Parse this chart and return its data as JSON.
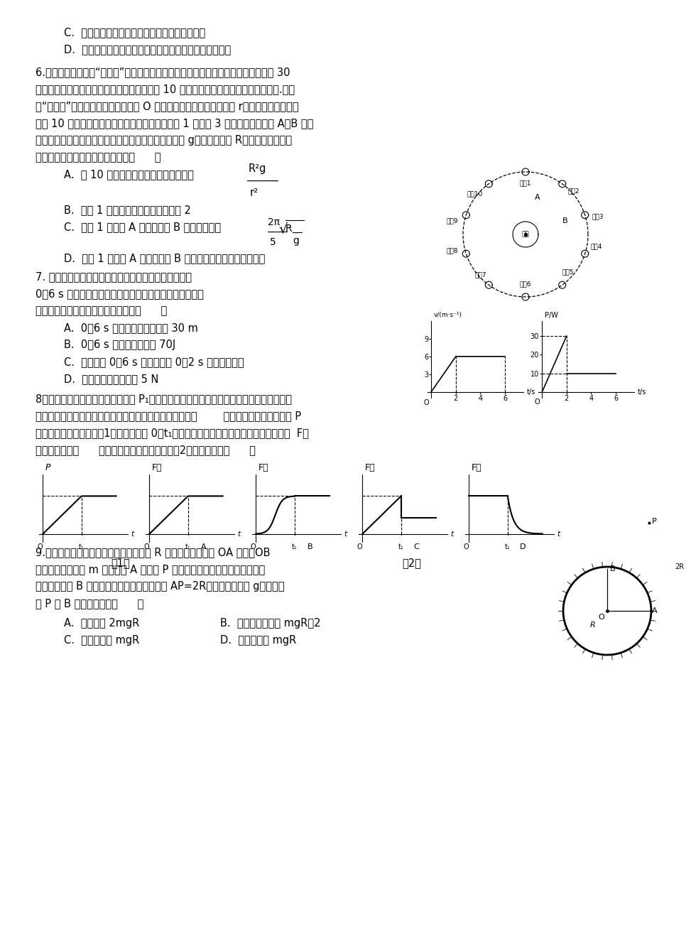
{
  "bg_color": "#ffffff",
  "text_color": "#000000"
}
